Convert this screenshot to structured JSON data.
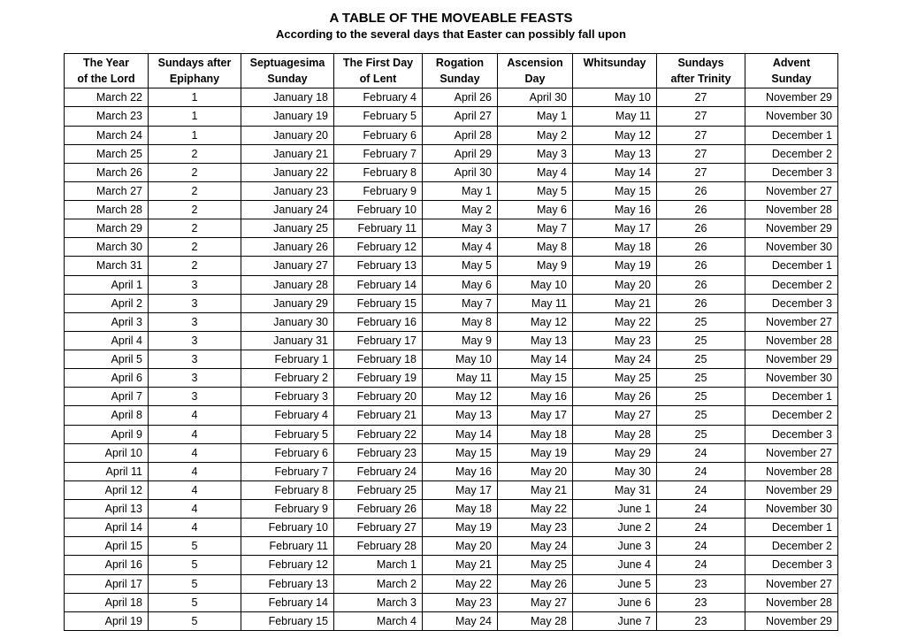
{
  "title": "A TABLE OF THE MOVEABLE FEASTS",
  "subtitle": "According to the several days that Easter can possibly fall upon",
  "columns": [
    {
      "l1": "The Year",
      "l2": "of the Lord"
    },
    {
      "l1": "Sundays after",
      "l2": "Epiphany"
    },
    {
      "l1": "Septuagesima",
      "l2": "Sunday"
    },
    {
      "l1": "The First Day",
      "l2": "of Lent"
    },
    {
      "l1": "Rogation",
      "l2": "Sunday"
    },
    {
      "l1": "Ascension",
      "l2": "Day"
    },
    {
      "l1": "Whitsunday",
      "l2": ""
    },
    {
      "l1": "Sundays",
      "l2": "after Trinity"
    },
    {
      "l1": "Advent",
      "l2": "Sunday"
    }
  ],
  "col_align": [
    "r",
    "c",
    "r",
    "r",
    "r",
    "r",
    "r",
    "c",
    "r"
  ],
  "rows": [
    [
      "March 22",
      "1",
      "January 18",
      "February 4",
      "April 26",
      "April 30",
      "May 10",
      "27",
      "November 29"
    ],
    [
      "March 23",
      "1",
      "January 19",
      "February 5",
      "April 27",
      "May 1",
      "May 11",
      "27",
      "November 30"
    ],
    [
      "March 24",
      "1",
      "January 20",
      "February 6",
      "April 28",
      "May 2",
      "May 12",
      "27",
      "December 1"
    ],
    [
      "March 25",
      "2",
      "January 21",
      "February 7",
      "April 29",
      "May 3",
      "May 13",
      "27",
      "December 2"
    ],
    [
      "March 26",
      "2",
      "January 22",
      "February 8",
      "April 30",
      "May 4",
      "May 14",
      "27",
      "December 3"
    ],
    [
      "March 27",
      "2",
      "January 23",
      "February 9",
      "May 1",
      "May 5",
      "May 15",
      "26",
      "November 27"
    ],
    [
      "March 28",
      "2",
      "January 24",
      "February 10",
      "May 2",
      "May 6",
      "May 16",
      "26",
      "November 28"
    ],
    [
      "March 29",
      "2",
      "January 25",
      "February 11",
      "May 3",
      "May 7",
      "May 17",
      "26",
      "November 29"
    ],
    [
      "March 30",
      "2",
      "January 26",
      "February 12",
      "May 4",
      "May 8",
      "May 18",
      "26",
      "November 30"
    ],
    [
      "March 31",
      "2",
      "January 27",
      "February 13",
      "May 5",
      "May 9",
      "May 19",
      "26",
      "December 1"
    ],
    [
      "April 1",
      "3",
      "January 28",
      "February 14",
      "May 6",
      "May 10",
      "May 20",
      "26",
      "December 2"
    ],
    [
      "April 2",
      "3",
      "January 29",
      "February 15",
      "May 7",
      "May 11",
      "May 21",
      "26",
      "December 3"
    ],
    [
      "April 3",
      "3",
      "January 30",
      "February 16",
      "May 8",
      "May 12",
      "May 22",
      "25",
      "November 27"
    ],
    [
      "April 4",
      "3",
      "January 31",
      "February 17",
      "May 9",
      "May 13",
      "May 23",
      "25",
      "November 28"
    ],
    [
      "April 5",
      "3",
      "February 1",
      "February 18",
      "May 10",
      "May 14",
      "May 24",
      "25",
      "November 29"
    ],
    [
      "April 6",
      "3",
      "February 2",
      "February 19",
      "May 11",
      "May 15",
      "May 25",
      "25",
      "November 30"
    ],
    [
      "April 7",
      "3",
      "February 3",
      "February 20",
      "May 12",
      "May 16",
      "May 26",
      "25",
      "December 1"
    ],
    [
      "April 8",
      "4",
      "February 4",
      "February 21",
      "May 13",
      "May 17",
      "May 27",
      "25",
      "December 2"
    ],
    [
      "April 9",
      "4",
      "February 5",
      "February 22",
      "May 14",
      "May 18",
      "May 28",
      "25",
      "December 3"
    ],
    [
      "April 10",
      "4",
      "February 6",
      "February 23",
      "May 15",
      "May 19",
      "May 29",
      "24",
      "November 27"
    ],
    [
      "April 11",
      "4",
      "February 7",
      "February 24",
      "May 16",
      "May 20",
      "May 30",
      "24",
      "November 28"
    ],
    [
      "April 12",
      "4",
      "February 8",
      "February 25",
      "May 17",
      "May 21",
      "May 31",
      "24",
      "November 29"
    ],
    [
      "April 13",
      "4",
      "February 9",
      "February 26",
      "May 18",
      "May 22",
      "June 1",
      "24",
      "November 30"
    ],
    [
      "April 14",
      "4",
      "February 10",
      "February 27",
      "May 19",
      "May 23",
      "June 2",
      "24",
      "December 1"
    ],
    [
      "April 15",
      "5",
      "February 11",
      "February 28",
      "May 20",
      "May 24",
      "June 3",
      "24",
      "December 2"
    ],
    [
      "April 16",
      "5",
      "February 12",
      "March 1",
      "May 21",
      "May 25",
      "June 4",
      "24",
      "December 3"
    ],
    [
      "April 17",
      "5",
      "February 13",
      "March 2",
      "May 22",
      "May 26",
      "June 5",
      "23",
      "November 27"
    ],
    [
      "April 18",
      "5",
      "February 14",
      "March 3",
      "May 23",
      "May 27",
      "June 6",
      "23",
      "November 28"
    ],
    [
      "April 19",
      "5",
      "February 15",
      "March 4",
      "May 24",
      "May 28",
      "June 7",
      "23",
      "November 29"
    ]
  ]
}
